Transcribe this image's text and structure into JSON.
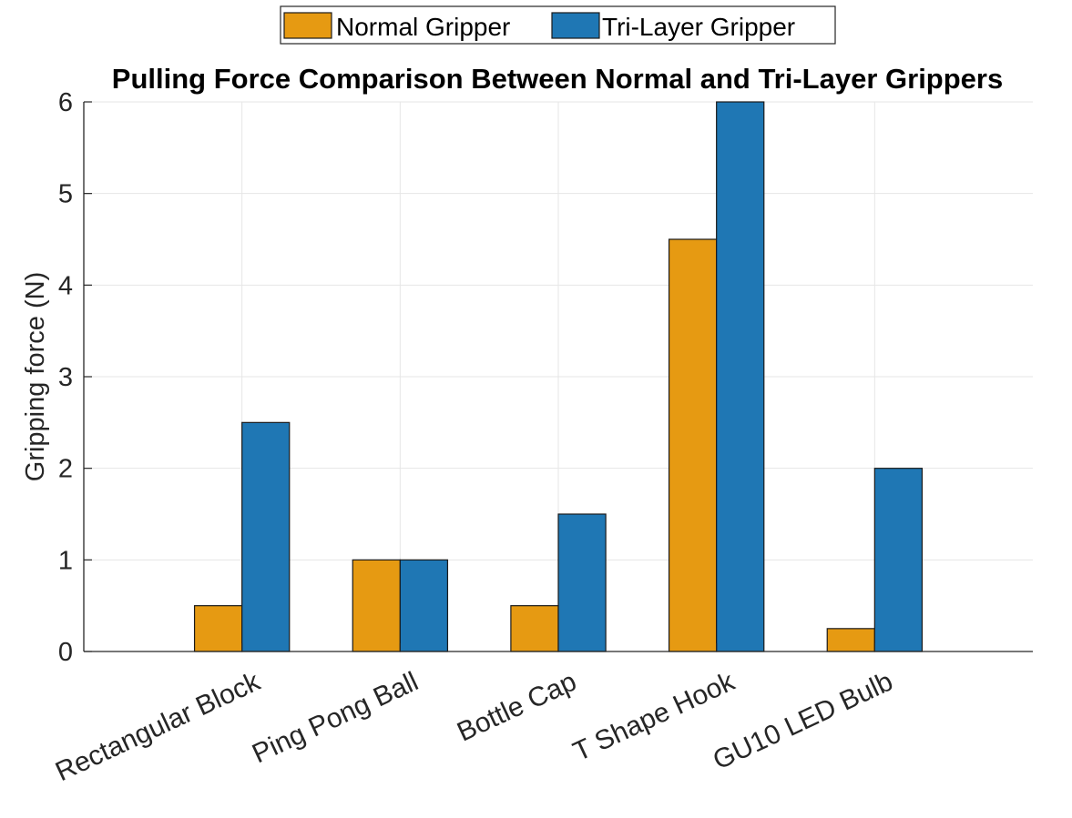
{
  "chart_data": {
    "type": "bar",
    "title": "Pulling Force Comparison Between Normal and Tri-Layer Grippers",
    "xlabel": "",
    "ylabel": "Gripping force (N)",
    "categories": [
      "Rectangular Block",
      "Ping Pong Ball",
      "Bottle Cap",
      "T Shape Hook",
      "GU10 LED Bulb"
    ],
    "series": [
      {
        "name": "Normal Gripper",
        "color": "#E69A12",
        "values": [
          0.5,
          1.0,
          0.5,
          4.5,
          0.25
        ]
      },
      {
        "name": "Tri-Layer Gripper",
        "color": "#1F77B4",
        "values": [
          2.5,
          1.0,
          1.5,
          6.0,
          2.0
        ]
      }
    ],
    "ylim": [
      0,
      6
    ],
    "yticks": [
      0,
      1,
      2,
      3,
      4,
      5,
      6
    ],
    "x_padding_categories": 1,
    "grid": true,
    "legend_position": "top-center",
    "legend_orientation": "horizontal"
  }
}
